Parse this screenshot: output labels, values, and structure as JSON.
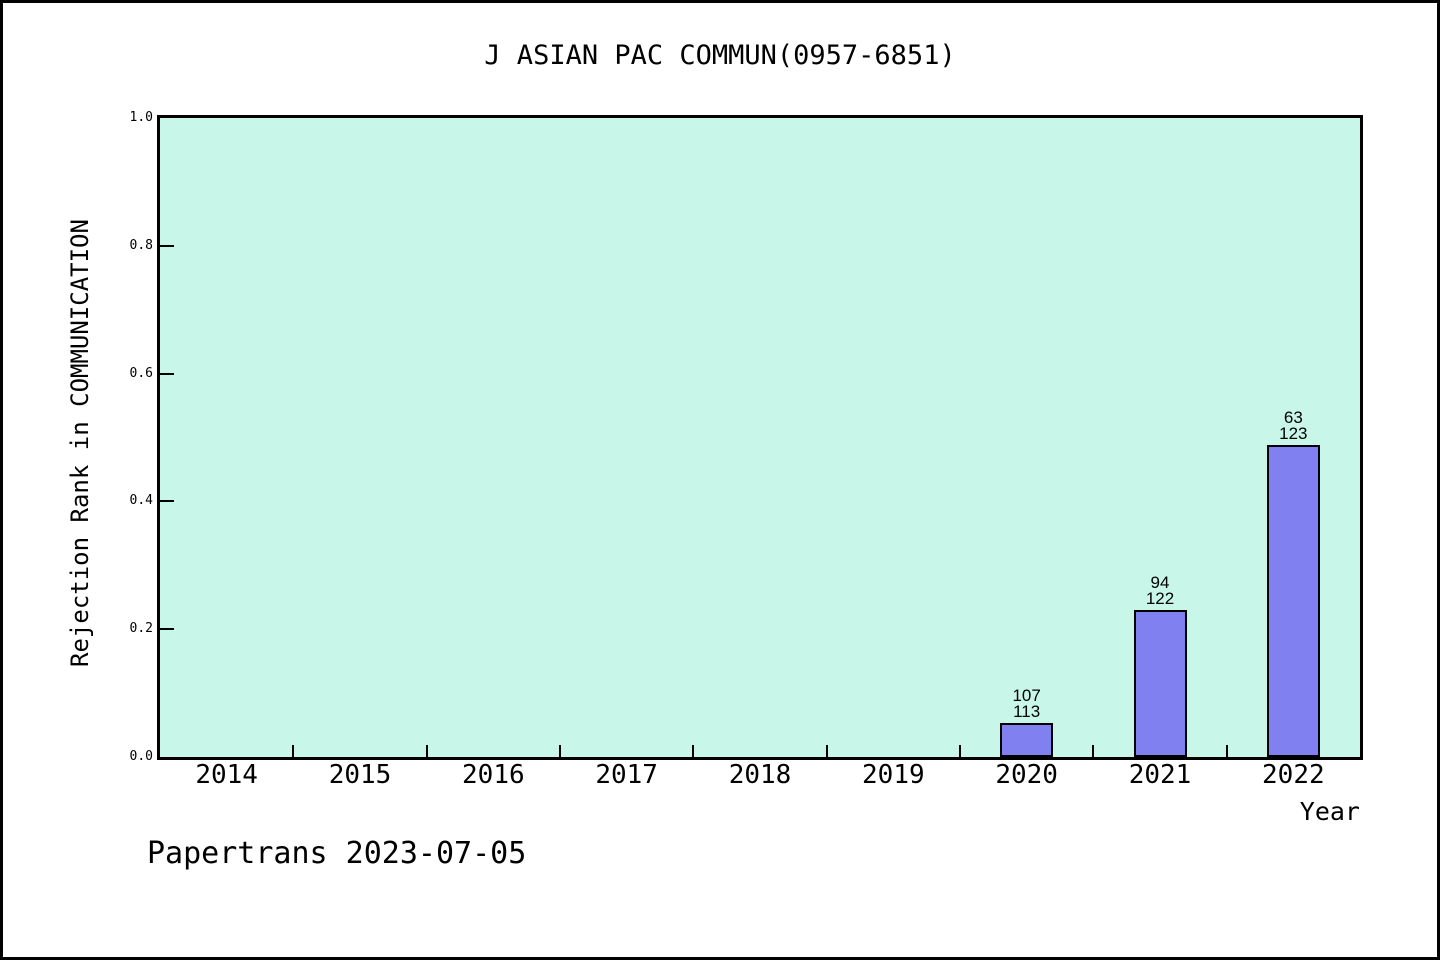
{
  "footer": "Papertrans 2023-07-05",
  "chart_data": {
    "type": "bar",
    "title": "J ASIAN PAC COMMUN(0957-6851)",
    "xlabel": "Year",
    "ylabel": "Rejection Rank in COMMUNICATION",
    "categories": [
      "2014",
      "2015",
      "2016",
      "2017",
      "2018",
      "2019",
      "2020",
      "2021",
      "2022"
    ],
    "values": [
      null,
      null,
      null,
      null,
      null,
      null,
      0.053,
      0.23,
      0.488
    ],
    "bar_annotations": [
      null,
      null,
      null,
      null,
      null,
      null,
      [
        "107",
        "113"
      ],
      [
        "94",
        "122"
      ],
      [
        "63",
        "123"
      ]
    ],
    "ylim": [
      0.0,
      1.0
    ],
    "yticks": [
      0.0,
      0.2,
      0.4,
      0.6,
      0.8,
      1.0
    ],
    "grid": "off",
    "legend": "none",
    "colors": {
      "bar_fill": "#8080f0",
      "bar_edge": "#000000",
      "plot_background": "#c8f7e9",
      "page_background": "#ffffff",
      "axis": "#000000",
      "text": "#000000"
    }
  }
}
